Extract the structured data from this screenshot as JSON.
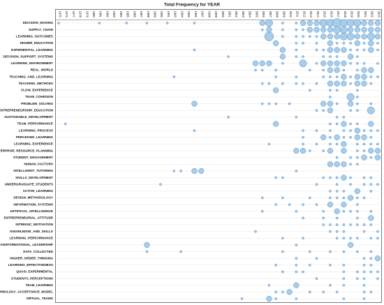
{
  "chart_data": {
    "type": "bubble",
    "title": "Total Frequency for YEAR",
    "categories": [
      1975,
      1976,
      1977,
      1978,
      1979,
      1980,
      1981,
      1982,
      1983,
      1984,
      1985,
      1986,
      1987,
      1988,
      1989,
      1990,
      1991,
      1993,
      1994,
      1995,
      1996,
      1997,
      1998,
      1999,
      2000,
      2001,
      2002,
      2003,
      2004,
      2005,
      2006,
      2007,
      2008,
      2009,
      2010,
      2011,
      2012,
      2013,
      2014,
      2015,
      2016,
      2017,
      2018,
      2019,
      2020,
      2021,
      2022,
      2023
    ],
    "color": "#a9cde9",
    "edge_color": "#4a8cc9",
    "rows": [
      {
        "name": "DECISION_MAKING",
        "years": [
          1975,
          1981,
          1985,
          1988,
          1991,
          1996,
          2006,
          2007,
          2009,
          2011,
          2012,
          2013,
          2014,
          2015,
          2016,
          2017,
          2018,
          2019,
          2020,
          2021,
          2022,
          2023
        ],
        "counts": [
          1,
          1,
          1,
          1,
          1,
          1,
          2,
          3,
          1,
          1,
          2,
          2,
          2,
          3,
          3,
          4,
          3,
          3,
          3,
          2,
          2,
          2
        ]
      },
      {
        "name": "SUPPLY_CHAIN",
        "years": [
          2006,
          2007,
          2009,
          2011,
          2012,
          2013,
          2014,
          2015,
          2016,
          2017,
          2018,
          2019,
          2020,
          2021,
          2022,
          2023
        ],
        "counts": [
          1,
          2,
          1,
          1,
          1,
          2,
          2,
          2,
          2,
          3,
          3,
          2,
          2,
          2,
          2,
          2
        ]
      },
      {
        "name": "LEARNING_OUTCOMES",
        "years": [
          2007,
          2009,
          2011,
          2012,
          2013,
          2014,
          2015,
          2016,
          2017,
          2018,
          2019,
          2020,
          2021,
          2022,
          2023
        ],
        "counts": [
          4,
          1,
          1,
          1,
          1,
          1,
          2,
          2,
          2,
          3,
          3,
          2,
          2,
          3,
          2
        ]
      },
      {
        "name": "HIGHER_EDUCATION",
        "years": [
          2008,
          2011,
          2012,
          2014,
          2016,
          2017,
          2018,
          2019,
          2020,
          2021,
          2022,
          2023
        ],
        "counts": [
          2,
          1,
          1,
          1,
          2,
          1,
          1,
          1,
          2,
          1,
          2,
          1
        ]
      },
      {
        "name": "EXPERIENTIAL_LEARNING",
        "years": [
          1996,
          2009,
          2011,
          2014,
          2015,
          2016,
          2017,
          2018,
          2019,
          2020,
          2021,
          2022,
          2023
        ],
        "counts": [
          1,
          2,
          1,
          1,
          1,
          2,
          2,
          2,
          1,
          1,
          1,
          2,
          1
        ]
      },
      {
        "name": "DECISION_SUPPORT_SYSTEMS",
        "years": [
          2001,
          2009,
          2011,
          2012,
          2015,
          2016,
          2017,
          2019,
          2020
        ],
        "counts": [
          1,
          2,
          1,
          1,
          1,
          1,
          1,
          2,
          1
        ]
      },
      {
        "name": "LEARNING_ENVIRONMENT",
        "years": [
          2005,
          2006,
          2007,
          2009,
          2012,
          2014,
          2015,
          2016,
          2017,
          2018,
          2019,
          2020,
          2021,
          2023
        ],
        "counts": [
          2,
          2,
          2,
          1,
          3,
          1,
          2,
          2,
          2,
          2,
          1,
          1,
          1,
          1
        ]
      },
      {
        "name": "REAL_WORLD",
        "years": [
          2005,
          2006,
          2008,
          2013,
          2015,
          2016,
          2017,
          2018,
          2020,
          2021,
          2022
        ],
        "counts": [
          1,
          1,
          1,
          1,
          1,
          2,
          2,
          1,
          1,
          2,
          2
        ]
      },
      {
        "name": "TEACHING_AND_LEARNING",
        "years": [
          1993,
          2008,
          2011,
          2015,
          2016,
          2017,
          2018,
          2019,
          2020,
          2021,
          2022,
          2023
        ],
        "counts": [
          1,
          1,
          1,
          1,
          1,
          1,
          2,
          1,
          2,
          2,
          1,
          1
        ]
      },
      {
        "name": "TEACHING_METHODS",
        "years": [
          2006,
          2007,
          2009,
          2011,
          2012,
          2014,
          2016,
          2017,
          2018,
          2019,
          2020,
          2021,
          2022
        ],
        "counts": [
          1,
          1,
          1,
          1,
          1,
          1,
          2,
          2,
          2,
          1,
          2,
          2,
          1
        ]
      },
      {
        "name": "FLOW_EXPERIENCE",
        "years": [
          2008,
          2013,
          2016,
          2017,
          2020
        ],
        "counts": [
          2,
          1,
          1,
          1,
          1
        ]
      },
      {
        "name": "TEAM_COHESION",
        "years": [
          2016,
          2019,
          2020
        ],
        "counts": [
          1,
          3,
          1
        ]
      },
      {
        "name": "PROBLEM_SOLVING",
        "years": [
          1996,
          2006,
          2007,
          2008,
          2010,
          2015,
          2016,
          2017,
          2019,
          2020,
          2022
        ],
        "counts": [
          2,
          1,
          1,
          1,
          1,
          2,
          2,
          1,
          2,
          1,
          1
        ]
      },
      {
        "name": "ENTREPRENEURSHIP_EDUCATION",
        "years": [
          2014,
          2015,
          2016,
          2019,
          2020,
          2022
        ],
        "counts": [
          1,
          1,
          2,
          1,
          1,
          3
        ]
      },
      {
        "name": "SUSTAINABLE_DEVELOPMENT",
        "years": [
          2001,
          2011,
          2017,
          2018
        ],
        "counts": [
          1,
          1,
          1,
          1
        ]
      },
      {
        "name": "TEAM_PERFORMANCE",
        "years": [
          1976,
          2008,
          2016,
          2017,
          2018,
          2019,
          2020,
          2022
        ],
        "counts": [
          1,
          2,
          1,
          1,
          2,
          1,
          1,
          2
        ]
      },
      {
        "name": "LEARNING_PROCESS",
        "years": [
          1996,
          2012,
          2014,
          2016,
          2018,
          2019,
          2020,
          2021,
          2022,
          2023
        ],
        "counts": [
          1,
          1,
          1,
          1,
          1,
          1,
          2,
          1,
          1,
          1
        ]
      },
      {
        "name": "PERCEIVED_LEARNING",
        "years": [
          2012,
          2015,
          2016,
          2017,
          2018,
          2019,
          2020,
          2021,
          2022
        ],
        "counts": [
          1,
          2,
          1,
          2,
          1,
          1,
          2,
          2,
          1
        ]
      },
      {
        "name": "LEARNING_EXPERIENCE",
        "years": [
          2007,
          2012,
          2014,
          2016,
          2017,
          2018,
          2020,
          2021,
          2022,
          2023
        ],
        "counts": [
          1,
          1,
          1,
          1,
          1,
          2,
          1,
          1,
          1,
          1
        ]
      },
      {
        "name": "ENTERPRISE_RESOURCE_PLANNING",
        "years": [
          2011,
          2012,
          2013,
          2015,
          2016,
          2018,
          2020,
          2021,
          2022,
          2023
        ],
        "counts": [
          2,
          2,
          1,
          1,
          2,
          2,
          1,
          1,
          2,
          2
        ]
      },
      {
        "name": "STUDENT_ENGAGEMENT",
        "years": [
          2017,
          2019,
          2020,
          2021,
          2022,
          2023
        ],
        "counts": [
          1,
          1,
          1,
          2,
          1,
          2
        ]
      },
      {
        "name": "HUMAN_FACTORS",
        "years": [
          2016,
          2017,
          2018,
          2019,
          2020
        ],
        "counts": [
          2,
          2,
          2,
          1,
          1
        ]
      },
      {
        "name": "INTELLIGENT_TUTORING",
        "years": [
          1993,
          1994,
          1996,
          1997,
          2011
        ],
        "counts": [
          1,
          1,
          2,
          2,
          1
        ]
      },
      {
        "name": "SKILLS_DEVELOPMENT",
        "years": [
          2008,
          2009,
          2015,
          2016,
          2017,
          2018,
          2019,
          2021,
          2022
        ],
        "counts": [
          1,
          1,
          1,
          1,
          1,
          2,
          1,
          1,
          1
        ]
      },
      {
        "name": "UNDERGRADUATE_STUDENTS",
        "years": [
          1990,
          2014,
          2017,
          2019,
          2021,
          2022,
          2023
        ],
        "counts": [
          1,
          1,
          1,
          1,
          1,
          1,
          1
        ]
      },
      {
        "name": "ACTIVE_LEARNING",
        "years": [
          2016,
          2017,
          2018,
          2020,
          2022
        ],
        "counts": [
          1,
          1,
          1,
          2,
          1
        ]
      },
      {
        "name": "DESIGN_METHODOLOGY",
        "years": [
          2006,
          2009,
          2013,
          2016,
          2017,
          2018,
          2019,
          2020,
          2021
        ],
        "counts": [
          1,
          1,
          1,
          1,
          1,
          1,
          2,
          1,
          1
        ]
      },
      {
        "name": "INFORMATION_SYSTEMS",
        "years": [
          2008,
          2010,
          2012,
          2014,
          2016,
          2018,
          2020
        ],
        "counts": [
          1,
          1,
          1,
          1,
          2,
          2,
          1
        ]
      },
      {
        "name": "ARTIFICIAL_INTELLIGENCE",
        "years": [
          2006,
          2011,
          2015,
          2017,
          2018,
          2019,
          2020,
          2022
        ],
        "counts": [
          1,
          1,
          1,
          2,
          1,
          1,
          1,
          1
        ]
      },
      {
        "name": "ENTREPRENEURIAL_ATTITUDE",
        "years": [
          2012,
          2015,
          2017,
          2020,
          2022
        ],
        "counts": [
          1,
          1,
          1,
          1,
          2
        ]
      },
      {
        "name": "INTRINSIC_MOTIVATION",
        "years": [
          2015,
          2016,
          2017,
          2018,
          2019,
          2020,
          2021,
          2022
        ],
        "counts": [
          1,
          1,
          1,
          1,
          1,
          1,
          1,
          1
        ]
      },
      {
        "name": "KNOWLEDGE_AND_SKILLS",
        "years": [
          2005,
          2016,
          2017,
          2018,
          2021,
          2023
        ],
        "counts": [
          1,
          1,
          1,
          1,
          1,
          1
        ]
      },
      {
        "name": "LEARNING_PERFORMANCE",
        "years": [
          2009,
          2012,
          2017,
          2018,
          2019,
          2020,
          2022,
          2023
        ],
        "counts": [
          1,
          1,
          1,
          1,
          1,
          1,
          1,
          1
        ]
      },
      {
        "name": "TRANSFORMATIONAL_LEADERSHIP",
        "years": [
          1988,
          2011,
          2019
        ],
        "counts": [
          2,
          1,
          2
        ]
      },
      {
        "name": "DATA_COLLECTED",
        "years": [
          1988,
          1994,
          2009,
          2013,
          2016,
          2018,
          2020,
          2022
        ],
        "counts": [
          1,
          1,
          1,
          1,
          1,
          1,
          1,
          1
        ]
      },
      {
        "name": "HIGHER_ORDER_THINKING",
        "years": [
          2011,
          2014,
          2021,
          2022,
          2023
        ],
        "counts": [
          1,
          1,
          1,
          1,
          2
        ]
      },
      {
        "name": "LEARNING_EFFECTIVENESS",
        "years": [
          2008,
          2011,
          2013,
          2016,
          2018,
          2021,
          2022
        ],
        "counts": [
          1,
          1,
          1,
          1,
          1,
          1,
          1
        ]
      },
      {
        "name": "QUASI_EXPERIMENTAL",
        "years": [
          2009,
          2011,
          2012,
          2018,
          2020,
          2021,
          2022,
          2023
        ],
        "counts": [
          1,
          1,
          1,
          1,
          1,
          1,
          1,
          1
        ]
      },
      {
        "name": "STUDENTS_PERCEPTIONS",
        "years": [
          2014,
          2018,
          2020,
          2021,
          2023
        ],
        "counts": [
          1,
          1,
          1,
          1,
          1
        ]
      },
      {
        "name": "TEAM_LEARNING",
        "years": [
          2007,
          2011,
          2016,
          2018,
          2021
        ],
        "counts": [
          1,
          2,
          1,
          1,
          1
        ]
      },
      {
        "name": "TECHNOLOGY_ACCEPTANCE_MODEL",
        "years": [
          2008,
          2009,
          2010,
          2013,
          2015,
          2017,
          2021,
          2022
        ],
        "counts": [
          1,
          1,
          2,
          1,
          1,
          1,
          1,
          1
        ]
      },
      {
        "name": "VIRTUAL_TEAMS",
        "years": [
          2003,
          2007,
          2008,
          2011,
          2018,
          2021
        ],
        "counts": [
          1,
          2,
          1,
          1,
          1,
          1
        ]
      }
    ]
  }
}
